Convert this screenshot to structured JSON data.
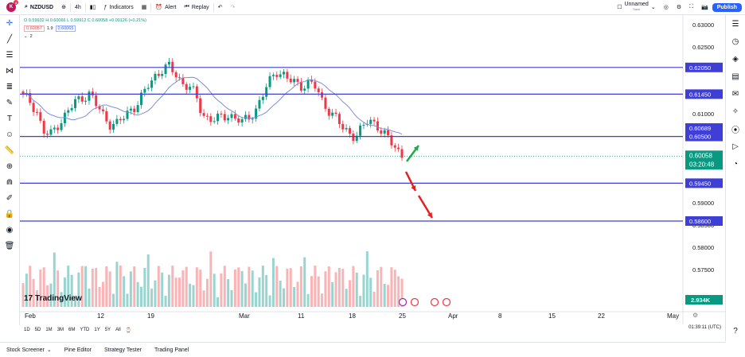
{
  "toolbar": {
    "logo_text": "K",
    "logo_badge": "4",
    "symbol": "NZDUSD",
    "interval": "4h",
    "indicators": "Indicators",
    "alert": "Alert",
    "replay": "Replay",
    "layout_name": "Unnamed",
    "layout_status": "Save",
    "publish": "Publish"
  },
  "legend": {
    "ohlc": "O 0.59932 H 0.60066 L 0.59912 C 0.60058 +0.00126 (+0.21%)",
    "bid": "0.60057",
    "spread": "1.9",
    "ask": "0.60065",
    "collapse_count": "2"
  },
  "price_axis": {
    "ticks": [
      "0.63000",
      "0.62500",
      "0.62000",
      "0.61500",
      "0.61000",
      "0.60500",
      "0.60000",
      "0.59500",
      "0.59000",
      "0.58500",
      "0.58000",
      "0.57500"
    ],
    "level_labels": [
      "0.62050",
      "0.61450",
      "0.60689",
      "0.60500",
      "0.59450",
      "0.58600"
    ],
    "current_price": "0.60058",
    "countdown": "03:20:48",
    "volume_label": "2.934K"
  },
  "time_axis": {
    "labels": [
      "Feb",
      "12",
      "19",
      "Mar",
      "11",
      "18",
      "25",
      "Apr",
      "8",
      "15",
      "22",
      "May"
    ]
  },
  "colors": {
    "up": "#089981",
    "down": "#f23645",
    "level": "#3f3fd8",
    "ma": "#7e8ed8",
    "accent": "#2962ff"
  },
  "chart_data": {
    "type": "candlestick",
    "symbol": "NZDUSD",
    "timeframe": "4h",
    "horizontal_levels": [
      0.6205,
      0.6145,
      0.605,
      0.5945,
      0.586
    ],
    "last_price": 0.60058,
    "ylim": [
      0.571,
      0.631
    ],
    "x_labels": [
      "Feb",
      "12",
      "19",
      "Mar",
      "11",
      "18",
      "25",
      "Apr",
      "8",
      "15",
      "22",
      "May"
    ]
  },
  "ranges": [
    "1D",
    "5D",
    "1M",
    "3M",
    "6M",
    "YTD",
    "1Y",
    "5Y",
    "All"
  ],
  "clock": "01:39:11 (UTC)",
  "watermark": "TradingView",
  "bottom_tabs": [
    "Stock Screener",
    "Pine Editor",
    "Strategy Tester",
    "Trading Panel"
  ]
}
